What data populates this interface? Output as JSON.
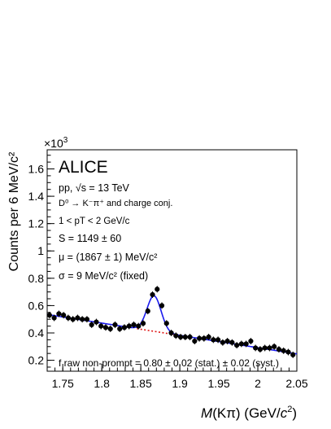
{
  "chart_data": {
    "type": "scatter",
    "experiment": "ALICE",
    "xlabel_parts": {
      "var": "M",
      "rest": "(Kπ) (GeV/",
      "c": "c",
      "exp": "2",
      "close": ")"
    },
    "ylabel": "Counts per 6 MeV/c²",
    "y_multiplier": "×10",
    "y_multiplier_exp": "3",
    "xlim": [
      1.73,
      2.05
    ],
    "ylim": [
      0.12,
      1.74
    ],
    "xticks": [
      1.75,
      1.8,
      1.85,
      1.9,
      1.95,
      2.0,
      2.05
    ],
    "xtick_labels": [
      "1.75",
      "1.8",
      "1.85",
      "1.9",
      "1.95",
      "2",
      "2.05"
    ],
    "yticks": [
      0.2,
      0.4,
      0.6,
      0.8,
      1.0,
      1.2,
      1.4,
      1.6
    ],
    "ytick_labels": [
      "0.2",
      "0.4",
      "0.6",
      "0.8",
      "1",
      "1.2",
      "1.4",
      "1.6"
    ],
    "info": {
      "line1": "pp, √s = 13 TeV",
      "line2": "D⁰ → K⁻π⁺ and charge conj.",
      "line3": "1 < pT < 2 GeV/c",
      "line4": "S = 1149 ± 60",
      "line5": "μ = (1867 ± 1) MeV/c²",
      "line6": "σ = 9 MeV/c² (fixed)",
      "line7": "f raw non-prompt = 0.80 ± 0.02 (stat.) ± 0.02 (syst.)"
    },
    "series": [
      {
        "kind": "data_points",
        "x": [
          1.733,
          1.739,
          1.745,
          1.751,
          1.757,
          1.763,
          1.769,
          1.775,
          1.781,
          1.787,
          1.793,
          1.799,
          1.805,
          1.811,
          1.817,
          1.823,
          1.829,
          1.835,
          1.841,
          1.847,
          1.853,
          1.859,
          1.865,
          1.871,
          1.877,
          1.883,
          1.889,
          1.895,
          1.901,
          1.907,
          1.913,
          1.919,
          1.925,
          1.931,
          1.937,
          1.943,
          1.949,
          1.955,
          1.961,
          1.967,
          1.973,
          1.979,
          1.985,
          1.991,
          1.997,
          2.003,
          2.009,
          2.015,
          2.021,
          2.027,
          2.033,
          2.039,
          2.045
        ],
        "y": [
          0.53,
          0.51,
          0.54,
          0.53,
          0.51,
          0.5,
          0.51,
          0.5,
          0.5,
          0.46,
          0.48,
          0.45,
          0.44,
          0.43,
          0.46,
          0.43,
          0.44,
          0.45,
          0.46,
          0.45,
          0.47,
          0.56,
          0.68,
          0.72,
          0.6,
          0.47,
          0.4,
          0.38,
          0.37,
          0.37,
          0.37,
          0.34,
          0.36,
          0.36,
          0.37,
          0.35,
          0.35,
          0.33,
          0.34,
          0.33,
          0.31,
          0.32,
          0.32,
          0.34,
          0.29,
          0.28,
          0.29,
          0.29,
          0.3,
          0.28,
          0.27,
          0.26,
          0.24
        ]
      },
      {
        "kind": "fit",
        "model": "linear_background_plus_gaussian",
        "background": {
          "slope": -0.9,
          "intercept_at_1_73": 0.535
        },
        "gaussian": {
          "mean": 1.867,
          "sigma": 0.009,
          "amplitude": 0.26
        },
        "color": "#1a1aee"
      },
      {
        "kind": "background",
        "color": "#e01818",
        "x_range": [
          1.845,
          1.905
        ]
      }
    ]
  }
}
